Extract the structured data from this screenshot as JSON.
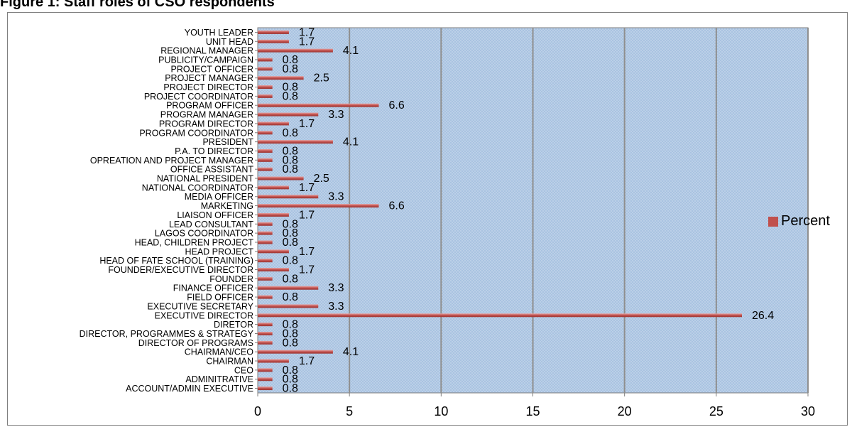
{
  "figure": {
    "title": "Figure 1: Staff roles of CSO respondents"
  },
  "legend": {
    "label": "Percent"
  },
  "colors": {
    "bar": "#c0504d",
    "bar_dark": "#9b3431",
    "plot_bg": "#a9c3e1",
    "grid": "#8f8f8f"
  },
  "chart_data": {
    "type": "bar",
    "orientation": "horizontal",
    "categories": [
      "ACCOUNT/ADMIN EXECUTIVE",
      "ADMINITRATIVE",
      "CEO",
      "CHAIRMAN",
      "CHAIRMAN/CEO",
      "DIRECTOR OF PROGRAMS",
      "DIRECTOR, PROGRAMMES & STRATEGY",
      "DIRETOR",
      "EXECUTIVE DIRECTOR",
      "EXECUTIVE SECRETARY",
      "FIELD OFFICER",
      "FINANCE OFFICER",
      "FOUNDER",
      "FOUNDER/EXECUTIVE DIRECTOR",
      "HEAD OF FATE SCHOOL (TRAINING)",
      "HEAD PROJECT",
      "HEAD, CHILDREN PROJECT",
      "LAGOS COORDINATOR",
      "LEAD CONSULTANT",
      "LIAISON OFFICER",
      "MARKETING",
      "MEDIA OFFICER",
      "NATIONAL COORDINATOR",
      "NATIONAL PRESIDENT",
      "OFFICE ASSISTANT",
      "OPREATION AND PROJECT MANAGER",
      "P.A. TO DIRECTOR",
      "PRESIDENT",
      "PROGRAM COORDINATOR",
      "PROGRAM DIRECTOR",
      "PROGRAM MANAGER",
      "PROGRAM OFFICER",
      "PROJECT COORDINATOR",
      "PROJECT DIRECTOR",
      "PROJECT MANAGER",
      "PROJECT OFFICER",
      "PUBLICITY/CAMPAIGN",
      "REGIONAL MANAGER",
      "UNIT HEAD",
      "YOUTH LEADER"
    ],
    "series": [
      {
        "name": "Percent",
        "values": [
          0.8,
          0.8,
          0.8,
          1.7,
          4.1,
          0.8,
          0.8,
          0.8,
          26.4,
          3.3,
          0.8,
          3.3,
          0.8,
          1.7,
          0.8,
          1.7,
          0.8,
          0.8,
          0.8,
          1.7,
          6.6,
          3.3,
          1.7,
          2.5,
          0.8,
          0.8,
          0.8,
          4.1,
          0.8,
          1.7,
          3.3,
          6.6,
          0.8,
          0.8,
          2.5,
          0.8,
          0.8,
          4.1,
          1.7,
          1.7
        ]
      }
    ],
    "xlim": [
      0,
      30
    ],
    "xticks": [
      0,
      5,
      10,
      15,
      20,
      25,
      30
    ],
    "grid": true,
    "legend_position": "right",
    "xlabel": "",
    "ylabel": ""
  }
}
